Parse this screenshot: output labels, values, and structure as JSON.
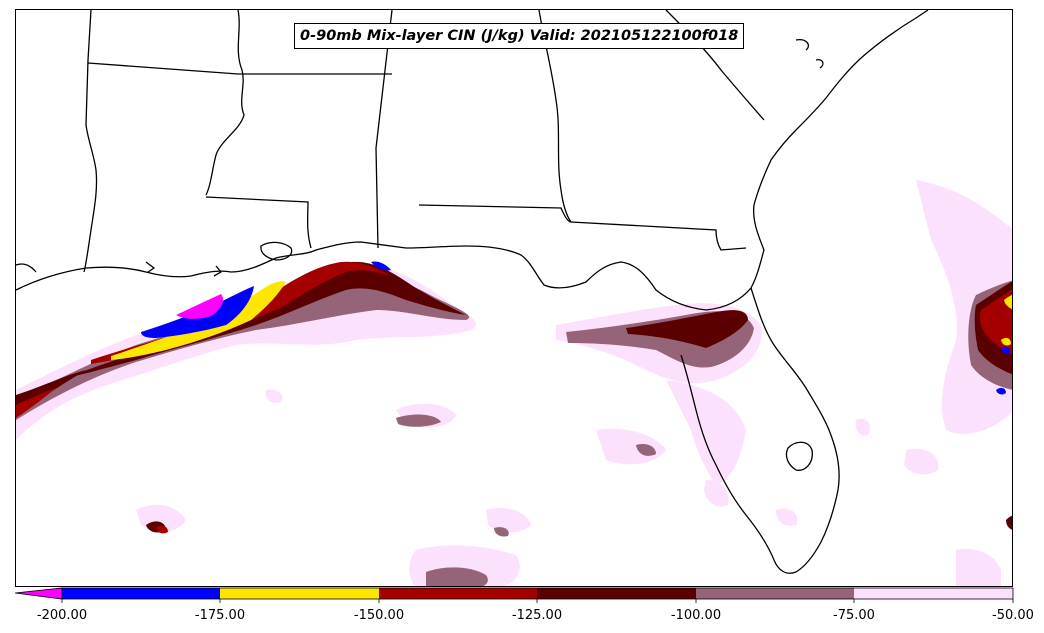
{
  "title": "0-90mb Mix-layer CIN (J/kg) Valid: 202105122100f018",
  "colorbar": {
    "ticks": [
      "-200.00",
      "-175.00",
      "-150.00",
      "-125.00",
      "-100.00",
      "-75.00",
      "-50.00"
    ],
    "bins": [
      {
        "range": "< -200",
        "color": "#ff00ff"
      },
      {
        "range": "-200 to -175",
        "color": "#0000ff"
      },
      {
        "range": "-175 to -150",
        "color": "#ffe600"
      },
      {
        "range": "-150 to -125",
        "color": "#a50000"
      },
      {
        "range": "-125 to -100",
        "color": "#5a0000"
      },
      {
        "range": "-100 to -75",
        "color": "#966478"
      },
      {
        "range": "-75 to -50",
        "color": "#fce1fc"
      }
    ]
  },
  "map": {
    "region": "Southeastern United States and Gulf of Mexico",
    "features": [
      "state-borders-icon",
      "coastline-icon",
      "cin-shading"
    ]
  }
}
